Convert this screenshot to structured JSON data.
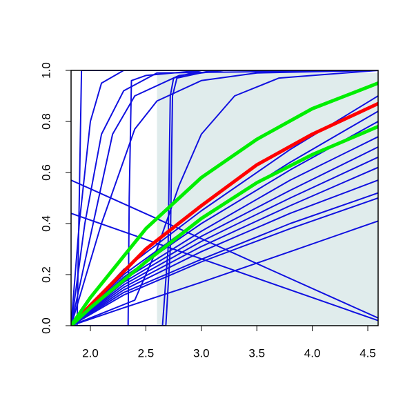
{
  "chart_data": {
    "type": "line",
    "xlim": [
      1.826,
      4.593
    ],
    "ylim": [
      0,
      1
    ],
    "xticks": [
      {
        "value": 2,
        "label": "2.0"
      },
      {
        "value": 2.5,
        "label": "2.5"
      },
      {
        "value": 3,
        "label": "3.0"
      },
      {
        "value": 3.5,
        "label": "3.5"
      },
      {
        "value": 4,
        "label": "4.0"
      },
      {
        "value": 4.5,
        "label": "4.5"
      }
    ],
    "yticks": [
      {
        "value": 0,
        "label": "0.0"
      },
      {
        "value": 0.2,
        "label": "0.2"
      },
      {
        "value": 0.4,
        "label": "0.4"
      },
      {
        "value": 0.6,
        "label": "0.6"
      },
      {
        "value": 0.8,
        "label": "0.8"
      },
      {
        "value": 1,
        "label": "1.0"
      }
    ],
    "shaded_region": {
      "x": [
        2.6,
        4.593
      ],
      "y": [
        0,
        0.99
      ],
      "color": "#e0ecec"
    },
    "series": [
      {
        "color": "#1010e0",
        "linewidth": 2,
        "x": [
          1.826,
          1.88,
          1.9,
          1.92,
          4.593
        ],
        "values": [
          0,
          0,
          0.5,
          1,
          1
        ]
      },
      {
        "color": "#1010e0",
        "linewidth": 2,
        "x": [
          1.826,
          1.9,
          2.0,
          2.1,
          2.3,
          4.593
        ],
        "values": [
          0,
          0.4,
          0.8,
          0.95,
          1,
          1
        ]
      },
      {
        "color": "#1010e0",
        "linewidth": 2,
        "x": [
          1.826,
          1.95,
          2.1,
          2.3,
          2.6,
          4.593
        ],
        "values": [
          0,
          0.4,
          0.75,
          0.92,
          0.99,
          1
        ]
      },
      {
        "color": "#1010e0",
        "linewidth": 2,
        "x": [
          1.826,
          2.0,
          2.2,
          2.4,
          2.8,
          3.2,
          4.593
        ],
        "values": [
          0,
          0.35,
          0.75,
          0.9,
          0.98,
          1,
          1
        ]
      },
      {
        "color": "#1010e0",
        "linewidth": 2,
        "x": [
          1.826,
          2.1,
          2.4,
          2.6,
          3.0,
          3.5,
          4.593
        ],
        "values": [
          0,
          0.4,
          0.77,
          0.88,
          0.96,
          0.99,
          1
        ]
      },
      {
        "color": "#1010e0",
        "linewidth": 2,
        "x": [
          1.826,
          2.34,
          2.35,
          2.37,
          2.5,
          3.0,
          4.593
        ],
        "values": [
          0,
          0,
          0.5,
          0.96,
          0.98,
          1,
          1
        ]
      },
      {
        "color": "#1010e0",
        "linewidth": 2,
        "x": [
          1.826,
          2.65,
          2.7,
          2.72,
          2.75,
          3.0,
          4.593
        ],
        "values": [
          0,
          0,
          0.3,
          0.9,
          0.97,
          1,
          1
        ]
      },
      {
        "color": "#1010e0",
        "linewidth": 2,
        "x": [
          1.826,
          2.68,
          2.72,
          2.74,
          2.78,
          3.1,
          4.593
        ],
        "values": [
          0,
          0,
          0.3,
          0.9,
          0.97,
          1,
          1
        ]
      },
      {
        "color": "#1010e0",
        "linewidth": 2,
        "x": [
          1.826,
          2.4,
          2.6,
          2.8,
          3.0,
          3.3,
          3.7,
          4.593
        ],
        "values": [
          0,
          0.1,
          0.3,
          0.55,
          0.75,
          0.9,
          0.97,
          1
        ]
      },
      {
        "color": "#1010e0",
        "linewidth": 2,
        "x": [
          1.826,
          4.593
        ],
        "values": [
          0.57,
          0.03
        ]
      },
      {
        "color": "#1010e0",
        "linewidth": 2,
        "x": [
          1.826,
          4.593
        ],
        "values": [
          0.44,
          0.02
        ]
      },
      {
        "color": "#1010e0",
        "linewidth": 2,
        "x": [
          1.826,
          2.3,
          3.0,
          3.8,
          4.593
        ],
        "values": [
          0,
          0.07,
          0.17,
          0.29,
          0.41
        ]
      },
      {
        "color": "#1010e0",
        "linewidth": 2,
        "x": [
          1.826,
          2.3,
          3.0,
          3.8,
          4.593
        ],
        "values": [
          0,
          0.12,
          0.25,
          0.38,
          0.5
        ]
      },
      {
        "color": "#1010e0",
        "linewidth": 2,
        "x": [
          1.826,
          2.3,
          3.0,
          3.8,
          4.593
        ],
        "values": [
          0,
          0.13,
          0.26,
          0.4,
          0.52
        ]
      },
      {
        "color": "#1010e0",
        "linewidth": 2,
        "x": [
          1.826,
          2.3,
          3.0,
          3.8,
          4.593
        ],
        "values": [
          0,
          0.14,
          0.29,
          0.44,
          0.57
        ]
      },
      {
        "color": "#1010e0",
        "linewidth": 2,
        "x": [
          1.826,
          2.3,
          3.0,
          3.8,
          4.593
        ],
        "values": [
          0,
          0.15,
          0.31,
          0.47,
          0.62
        ]
      },
      {
        "color": "#1010e0",
        "linewidth": 2,
        "x": [
          1.826,
          2.3,
          3.0,
          3.8,
          4.593
        ],
        "values": [
          0,
          0.16,
          0.33,
          0.5,
          0.66
        ]
      },
      {
        "color": "#1010e0",
        "linewidth": 2,
        "x": [
          1.826,
          2.3,
          3.0,
          3.8,
          4.593
        ],
        "values": [
          0,
          0.17,
          0.35,
          0.53,
          0.7
        ]
      },
      {
        "color": "#1010e0",
        "linewidth": 2,
        "x": [
          1.826,
          2.3,
          3.0,
          3.8,
          4.593
        ],
        "values": [
          0,
          0.18,
          0.37,
          0.57,
          0.74
        ]
      },
      {
        "color": "#1010e0",
        "linewidth": 2,
        "x": [
          1.826,
          2.3,
          3.0,
          3.8,
          4.593
        ],
        "values": [
          0,
          0.19,
          0.4,
          0.61,
          0.8
        ]
      },
      {
        "color": "#1010e0",
        "linewidth": 2,
        "x": [
          1.826,
          2.3,
          3.0,
          3.8,
          4.593
        ],
        "values": [
          0,
          0.2,
          0.42,
          0.64,
          0.84
        ]
      },
      {
        "color": "#1010e0",
        "linewidth": 2,
        "x": [
          1.826,
          2.3,
          3.0,
          3.8,
          4.593
        ],
        "values": [
          0,
          0.22,
          0.45,
          0.69,
          0.9
        ]
      },
      {
        "color": "#ff0000",
        "linewidth": 5,
        "x": [
          1.826,
          2.0,
          2.5,
          3.0,
          3.5,
          4.0,
          4.593
        ],
        "values": [
          0,
          0.08,
          0.3,
          0.47,
          0.63,
          0.75,
          0.87
        ]
      },
      {
        "color": "#00ee00",
        "linewidth": 5,
        "x": [
          1.826,
          2.0,
          2.5,
          3.0,
          3.5,
          4.0,
          4.593
        ],
        "values": [
          0,
          0.11,
          0.38,
          0.58,
          0.73,
          0.85,
          0.95
        ]
      },
      {
        "color": "#00ee00",
        "linewidth": 5,
        "x": [
          1.826,
          2.0,
          2.5,
          3.0,
          3.5,
          4.0,
          4.593
        ],
        "values": [
          0,
          0.07,
          0.25,
          0.42,
          0.56,
          0.67,
          0.78
        ]
      }
    ]
  }
}
